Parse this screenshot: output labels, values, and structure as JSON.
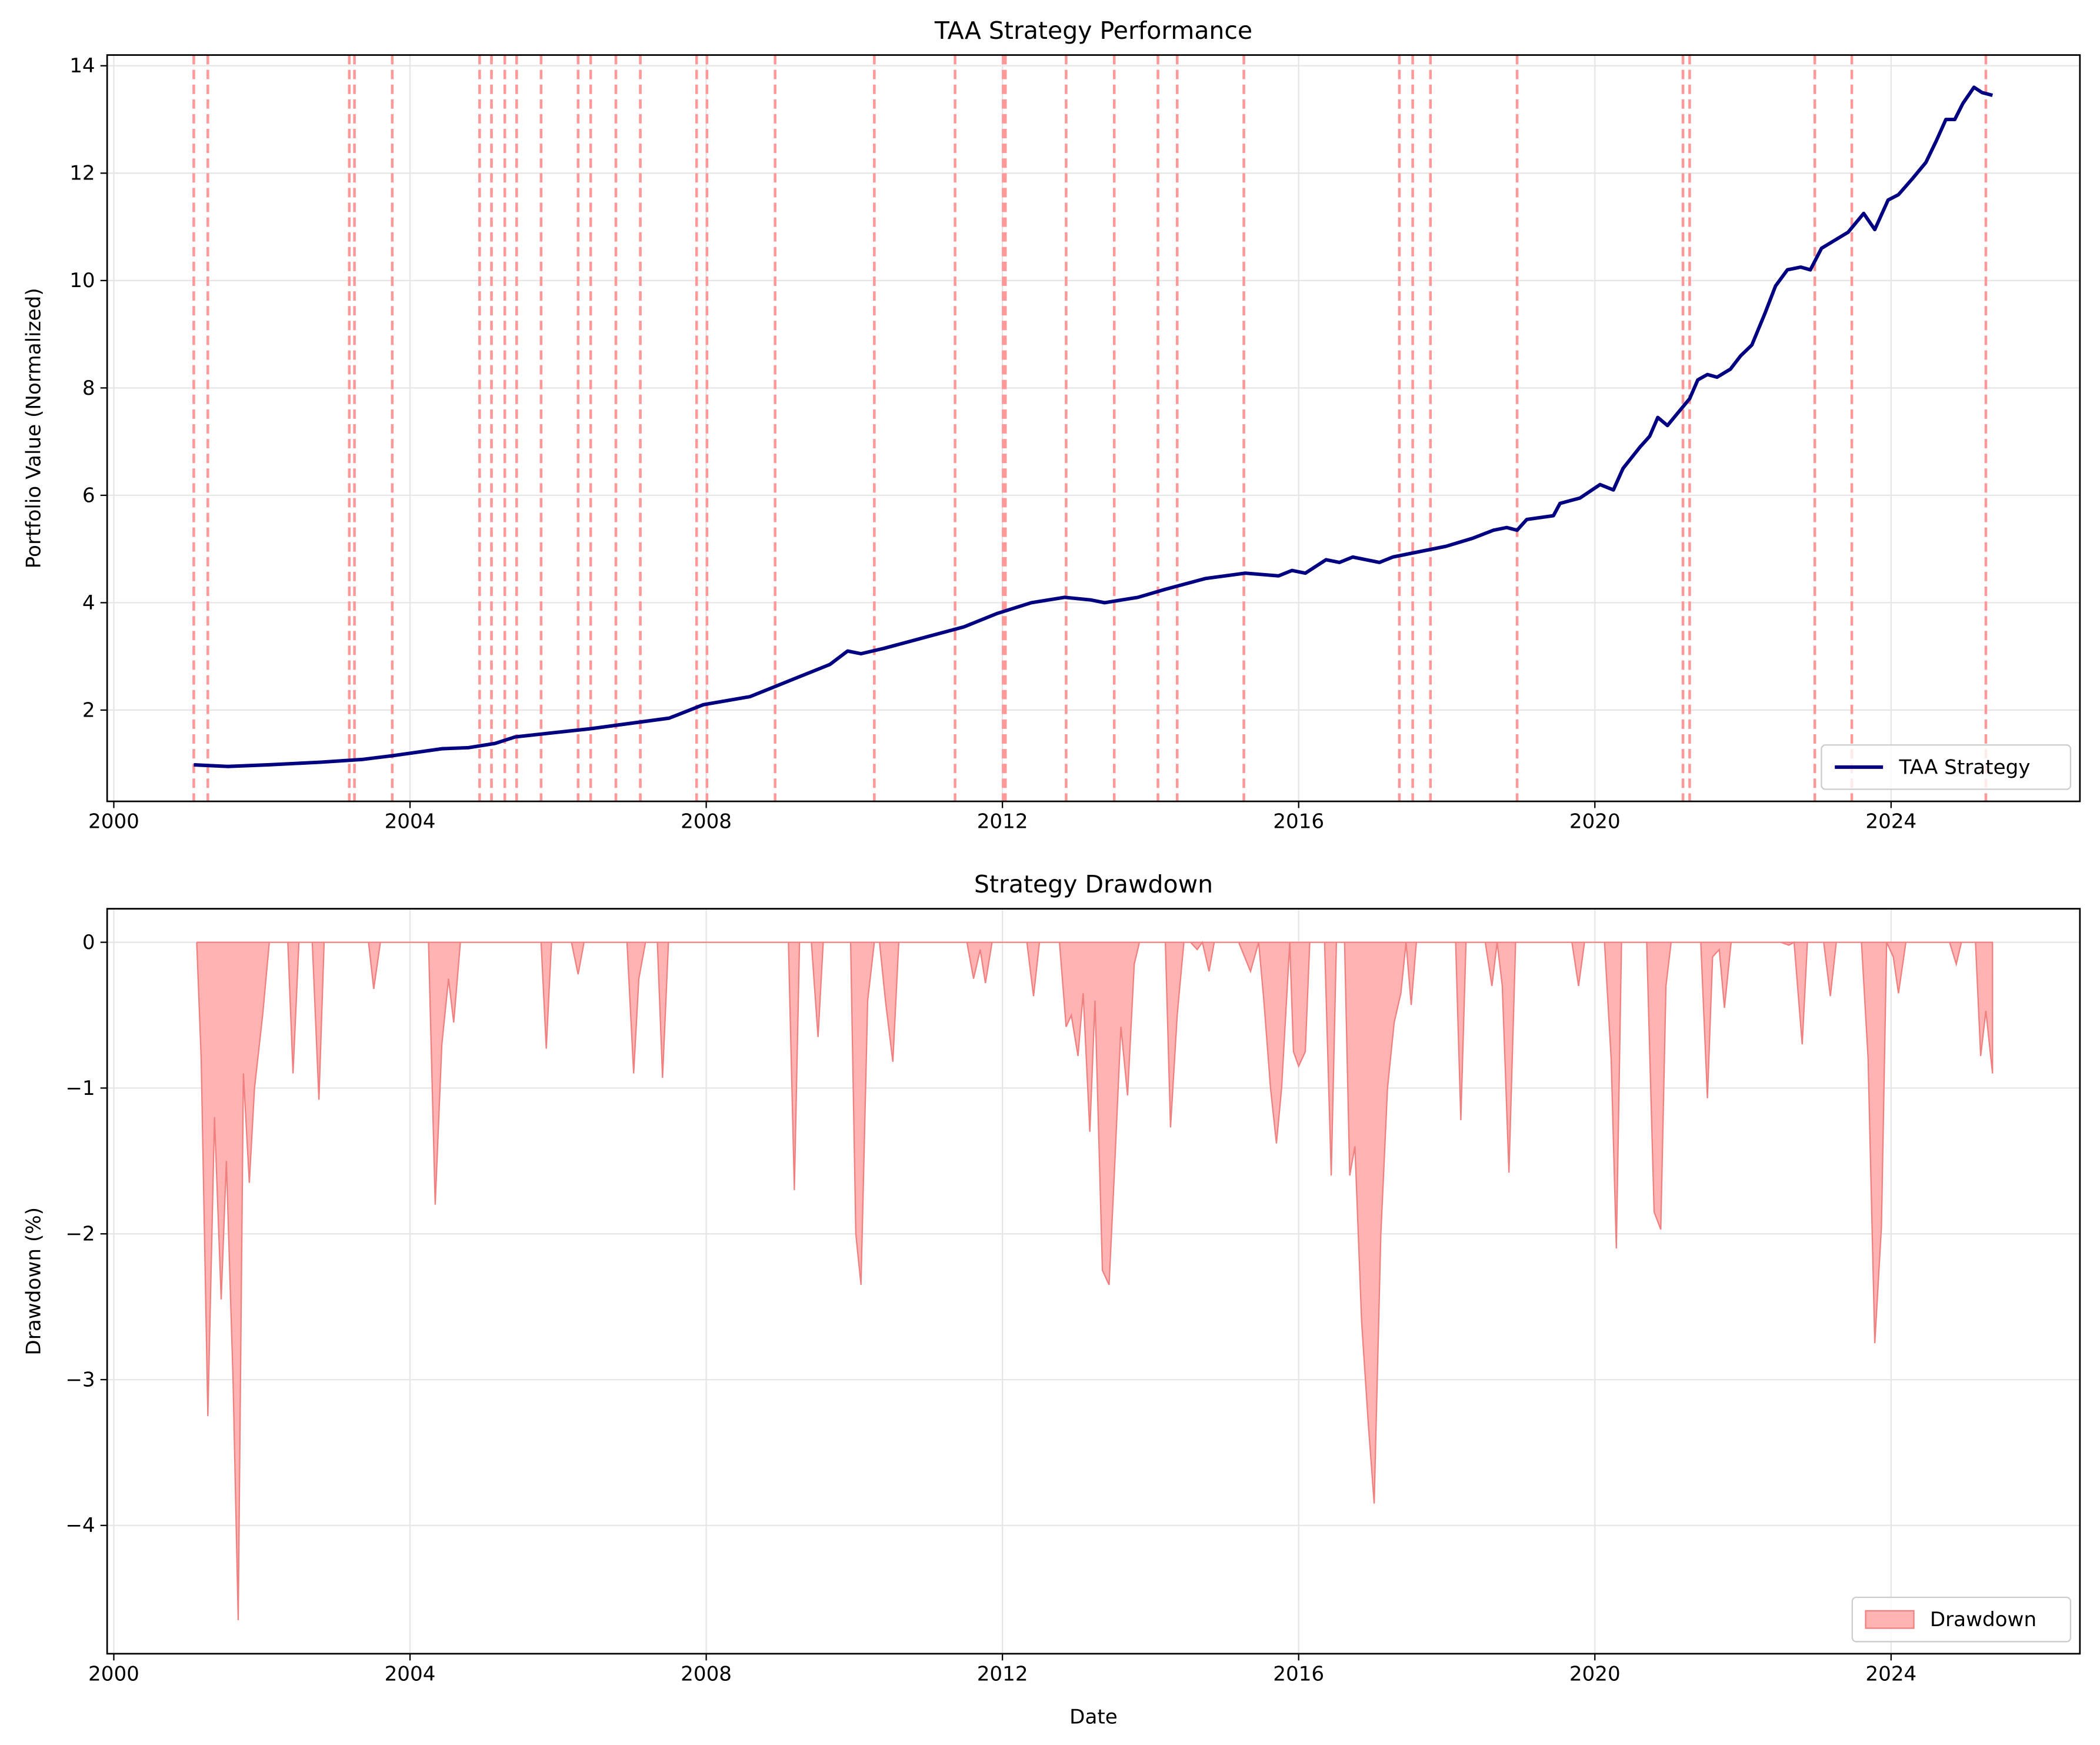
{
  "chart_data": [
    {
      "type": "line",
      "title": "TAA Strategy Performance",
      "ylabel": "Portfolio Value (Normalized)",
      "x": [
        2001.08,
        2001.54,
        2002.08,
        2002.8,
        2003.35,
        2003.76,
        2004.43,
        2004.79,
        2005.15,
        2005.42,
        2005.88,
        2006.42,
        2006.96,
        2007.5,
        2007.96,
        2008.59,
        2008.95,
        2009.22,
        2009.67,
        2009.91,
        2010.09,
        2010.4,
        2010.94,
        2011.48,
        2011.93,
        2012.39,
        2012.84,
        2013.2,
        2013.38,
        2013.83,
        2014.2,
        2014.74,
        2015.28,
        2015.73,
        2015.91,
        2016.09,
        2016.37,
        2016.55,
        2016.73,
        2017.09,
        2017.27,
        2017.63,
        2017.99,
        2018.35,
        2018.63,
        2018.81,
        2018.95,
        2019.08,
        2019.44,
        2019.53,
        2019.8,
        2020.07,
        2020.25,
        2020.38,
        2020.61,
        2020.74,
        2020.85,
        2020.98,
        2021.16,
        2021.28,
        2021.39,
        2021.52,
        2021.65,
        2021.83,
        2021.97,
        2022.12,
        2022.3,
        2022.44,
        2022.6,
        2022.78,
        2022.91,
        2023.06,
        2023.24,
        2023.42,
        2023.63,
        2023.78,
        2023.96,
        2024.1,
        2024.29,
        2024.47,
        2024.61,
        2024.74,
        2024.86,
        2024.97,
        2025.12,
        2025.23,
        2025.37
      ],
      "series": [
        {
          "name": "TAA Strategy",
          "color": "#000080",
          "values": [
            0.98,
            0.95,
            0.98,
            1.03,
            1.08,
            1.15,
            1.28,
            1.3,
            1.38,
            1.5,
            1.57,
            1.65,
            1.75,
            1.85,
            2.1,
            2.25,
            2.45,
            2.6,
            2.85,
            3.1,
            3.05,
            3.15,
            3.35,
            3.55,
            3.8,
            4.0,
            4.1,
            4.05,
            4.0,
            4.1,
            4.25,
            4.45,
            4.55,
            4.5,
            4.6,
            4.55,
            4.8,
            4.75,
            4.85,
            4.75,
            4.85,
            4.95,
            5.05,
            5.2,
            5.35,
            5.4,
            5.35,
            5.55,
            5.62,
            5.85,
            5.95,
            6.2,
            6.1,
            6.5,
            6.9,
            7.1,
            7.45,
            7.3,
            7.6,
            7.8,
            8.15,
            8.25,
            8.2,
            8.35,
            8.6,
            8.8,
            9.4,
            9.9,
            10.2,
            10.25,
            10.2,
            10.6,
            10.75,
            10.9,
            11.25,
            10.95,
            11.5,
            11.6,
            11.9,
            12.2,
            12.6,
            13.0,
            13.0,
            13.3,
            13.6,
            13.5,
            13.45
          ]
        }
      ],
      "vlines": [
        2001.08,
        2001.27,
        2003.18,
        2003.25,
        2003.76,
        2004.94,
        2005.1,
        2005.28,
        2005.44,
        2005.77,
        2006.27,
        2006.44,
        2006.78,
        2007.11,
        2007.87,
        2008.01,
        2008.93,
        2010.27,
        2011.36,
        2012.01,
        2012.04,
        2012.86,
        2013.51,
        2014.1,
        2014.36,
        2015.26,
        2017.36,
        2017.54,
        2017.78,
        2018.95,
        2021.19,
        2021.28,
        2022.97,
        2023.47,
        2025.28
      ],
      "vline_color": "#ff9999",
      "xlim": [
        1999.91,
        2026.55
      ],
      "xticks": [
        2000,
        2004,
        2008,
        2012,
        2016,
        2020,
        2024
      ],
      "ylim": [
        0.3,
        14.2
      ],
      "yticks": [
        2,
        4,
        6,
        8,
        10,
        12,
        14
      ],
      "grid": true,
      "legend": "lower right"
    },
    {
      "type": "area",
      "title": "Strategy Drawdown",
      "xlabel": "Date",
      "ylabel": "Drawdown (%)",
      "x": [
        2001.12,
        2001.18,
        2001.27,
        2001.36,
        2001.45,
        2001.52,
        2001.61,
        2001.68,
        2001.75,
        2001.83,
        2001.9,
        2002.01,
        2002.1,
        2002.35,
        2002.42,
        2002.5,
        2002.68,
        2002.77,
        2002.84,
        2003.44,
        2003.51,
        2003.6,
        2004.25,
        2004.34,
        2004.43,
        2004.52,
        2004.59,
        2004.68,
        2005.77,
        2005.84,
        2005.91,
        2006.18,
        2006.27,
        2006.35,
        2006.93,
        2007.02,
        2007.09,
        2007.18,
        2007.34,
        2007.41,
        2007.49,
        2009.11,
        2009.19,
        2009.26,
        2009.42,
        2009.51,
        2009.58,
        2009.95,
        2010.02,
        2010.09,
        2010.18,
        2010.27,
        2010.34,
        2010.42,
        2010.52,
        2010.6,
        2011.52,
        2011.61,
        2011.7,
        2011.77,
        2011.86,
        2012.33,
        2012.42,
        2012.5,
        2012.77,
        2012.86,
        2012.93,
        2013.02,
        2013.09,
        2013.18,
        2013.25,
        2013.35,
        2013.44,
        2013.51,
        2013.6,
        2013.69,
        2013.78,
        2013.85,
        2014.2,
        2014.27,
        2014.36,
        2014.45,
        2014.54,
        2014.63,
        2014.7,
        2014.79,
        2014.86,
        2015.19,
        2015.35,
        2015.46,
        2015.53,
        2015.62,
        2015.7,
        2015.77,
        2015.88,
        2015.93,
        2016.0,
        2016.09,
        2016.15,
        2016.35,
        2016.44,
        2016.51,
        2016.62,
        2016.69,
        2016.76,
        2016.85,
        2016.94,
        2017.02,
        2017.11,
        2017.2,
        2017.29,
        2017.38,
        2017.45,
        2017.52,
        2017.59,
        2018.12,
        2018.19,
        2018.26,
        2018.52,
        2018.61,
        2018.68,
        2018.75,
        2018.84,
        2018.93,
        2019.69,
        2019.78,
        2019.86,
        2020.13,
        2020.22,
        2020.29,
        2020.36,
        2020.7,
        2020.8,
        2020.89,
        2020.96,
        2021.03,
        2021.43,
        2021.52,
        2021.59,
        2021.68,
        2021.75,
        2021.84,
        2022.51,
        2022.62,
        2022.69,
        2022.8,
        2022.87,
        2023.09,
        2023.18,
        2023.26,
        2023.6,
        2023.69,
        2023.78,
        2023.87,
        2023.94,
        2024.03,
        2024.1,
        2024.2,
        2024.79,
        2024.88,
        2024.95,
        2025.14,
        2025.21,
        2025.28,
        2025.37
      ],
      "series": [
        {
          "name": "Drawdown",
          "color": "#ffb3b3",
          "edge_color": "#f08080",
          "values": [
            0,
            -0.8,
            -3.25,
            -1.2,
            -2.45,
            -1.5,
            -3.0,
            -4.65,
            -0.9,
            -1.65,
            -1.0,
            -0.5,
            0,
            0,
            -0.9,
            0,
            0,
            -1.08,
            0,
            0,
            -0.32,
            0,
            0,
            -1.8,
            -0.7,
            -0.25,
            -0.55,
            0,
            0,
            -0.73,
            0,
            0,
            -0.22,
            0,
            0,
            -0.9,
            -0.25,
            0,
            0,
            -0.93,
            0,
            0,
            -1.7,
            0,
            0,
            -0.65,
            0,
            0,
            -2.0,
            -2.35,
            -0.4,
            0,
            0,
            -0.4,
            -0.82,
            0,
            0,
            -0.25,
            -0.05,
            -0.28,
            0,
            0,
            -0.37,
            0,
            0,
            -0.58,
            -0.5,
            -0.78,
            -0.35,
            -1.3,
            -0.4,
            -2.25,
            -2.35,
            -1.6,
            -0.58,
            -1.05,
            -0.15,
            0,
            0,
            -1.27,
            -0.5,
            0,
            0,
            -0.05,
            0,
            -0.2,
            0,
            0,
            -0.2,
            0,
            -0.4,
            -1.0,
            -1.38,
            -1.0,
            0,
            -0.75,
            -0.85,
            -0.75,
            0,
            0,
            -1.6,
            0,
            0,
            -1.6,
            -1.4,
            -2.6,
            -3.3,
            -3.85,
            -2.0,
            -1.0,
            -0.55,
            -0.35,
            0,
            -0.43,
            0,
            0,
            -1.22,
            0,
            0,
            -0.3,
            0,
            -0.3,
            -1.58,
            0,
            0,
            -0.3,
            0,
            0,
            -0.8,
            -2.1,
            0,
            0,
            -1.85,
            -1.97,
            -0.3,
            0,
            0,
            -1.07,
            -0.1,
            -0.05,
            -0.45,
            0,
            0,
            -0.02,
            0,
            -0.7,
            0,
            0,
            -0.37,
            0,
            0,
            -0.8,
            -2.75,
            -1.95,
            0,
            -0.1,
            -0.35,
            0,
            0,
            -0.15,
            0,
            0,
            -0.78,
            -0.47,
            -0.9
          ]
        }
      ],
      "xlim": [
        1999.91,
        2026.55
      ],
      "xticks": [
        2000,
        2004,
        2008,
        2012,
        2016,
        2020,
        2024
      ],
      "ylim": [
        -4.88,
        0.23
      ],
      "yticks": [
        {
          "value": -4,
          "label": "−4"
        },
        {
          "value": -3,
          "label": "−3"
        },
        {
          "value": -2,
          "label": "−2"
        },
        {
          "value": -1,
          "label": "−1"
        },
        0
      ],
      "grid": true,
      "legend": "lower right"
    }
  ]
}
